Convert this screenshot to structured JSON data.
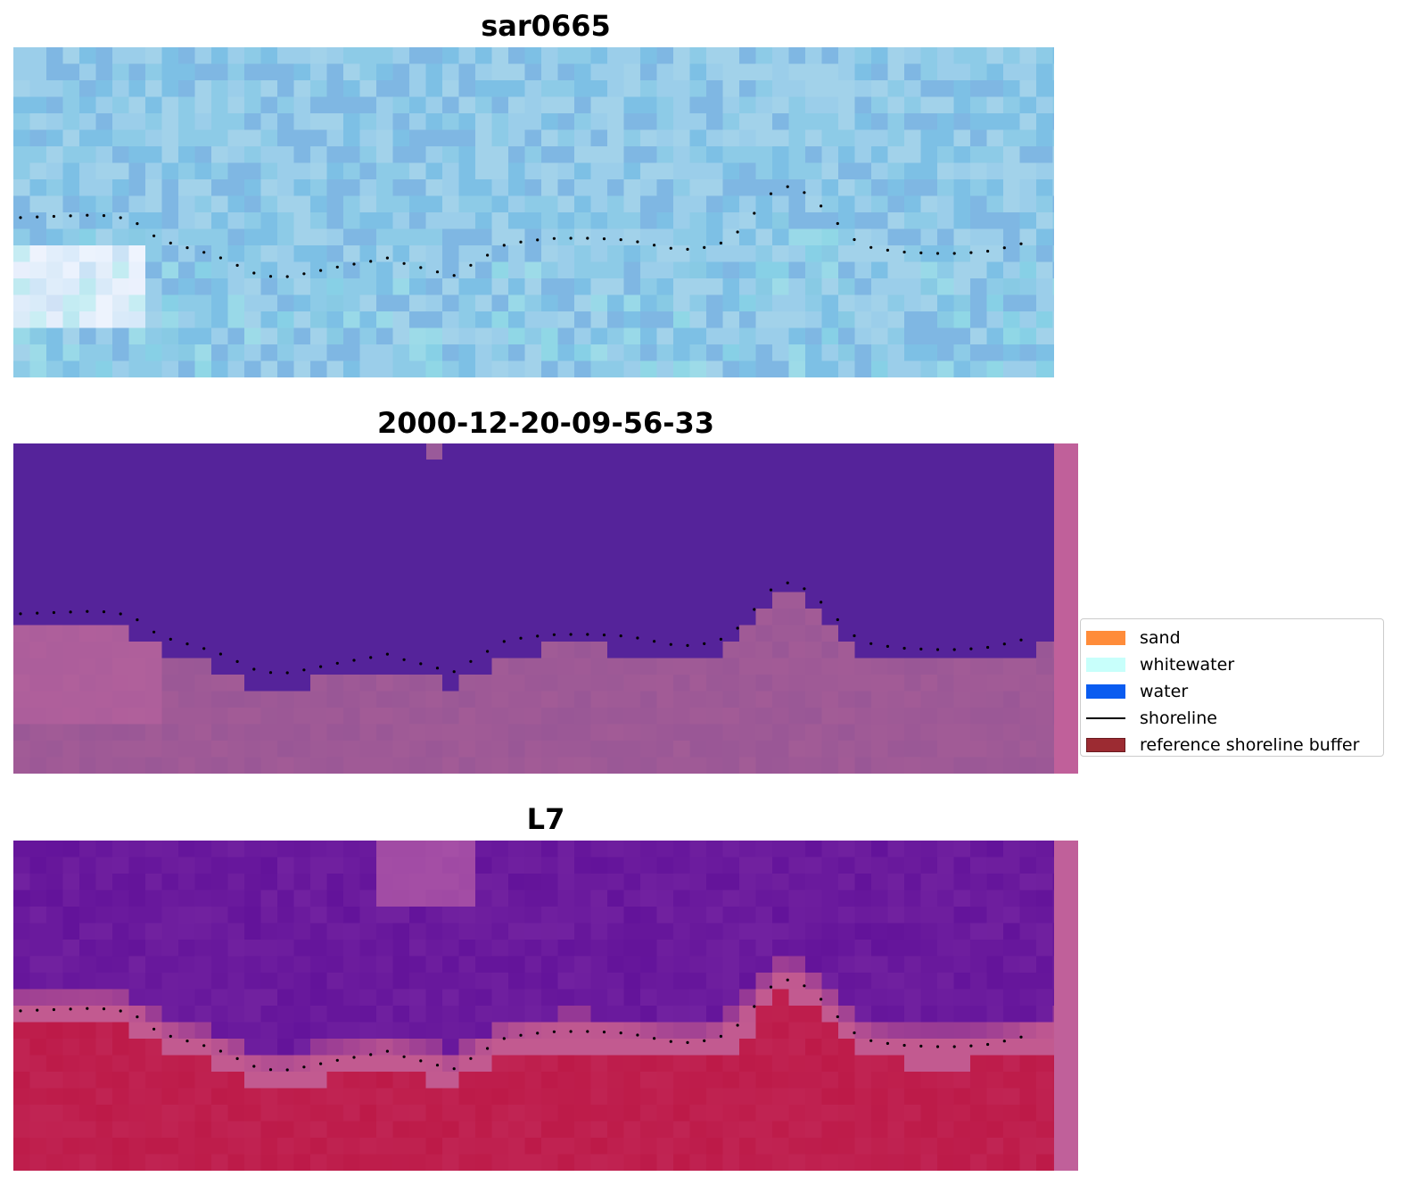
{
  "panels": [
    {
      "title": "sar0665",
      "kind": "rgb"
    },
    {
      "title": "2000-12-20-09-56-33",
      "kind": "classified"
    },
    {
      "title": "L7",
      "kind": "index"
    }
  ],
  "legend": {
    "items": [
      {
        "label": "sand",
        "color": "#ff8c3a",
        "type": "patch"
      },
      {
        "label": "whitewater",
        "color": "#c8fffb",
        "type": "patch"
      },
      {
        "label": "water",
        "color": "#0a5cf0",
        "type": "patch"
      },
      {
        "label": "shoreline",
        "color": "#000000",
        "type": "line"
      },
      {
        "label": "reference shoreline buffer",
        "color": "#9c2b32",
        "type": "patch"
      }
    ]
  },
  "colors": {
    "sar_base": "#8ec6e4",
    "sar_shore_white": "#f4f6ff",
    "classified_water": "#55239a",
    "classified_land": "#995796",
    "index_water": "#63139a",
    "index_land": "#bd1a48",
    "index_transition": "#c25a90"
  }
}
